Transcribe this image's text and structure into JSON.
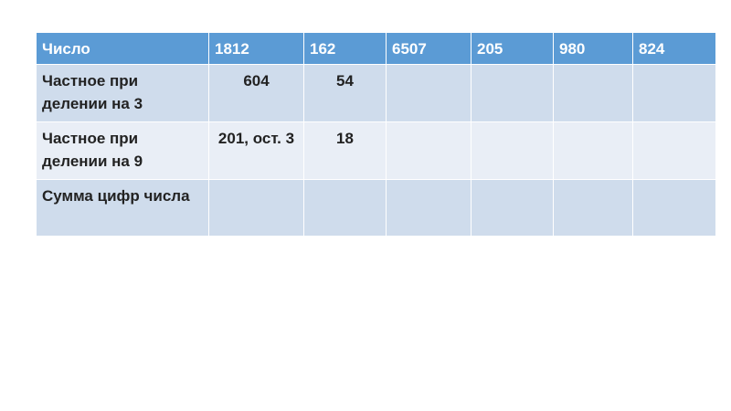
{
  "table": {
    "header": [
      "Число",
      "1812",
      "162",
      "6507",
      "205",
      "980",
      "824"
    ],
    "rows": [
      {
        "label": "Частное при делении на 3",
        "cells": [
          "604",
          "54",
          "",
          "",
          "",
          ""
        ]
      },
      {
        "label": "Частное при делении на 9",
        "cells": [
          "201, ост. 3",
          "18",
          "",
          "",
          "",
          ""
        ]
      },
      {
        "label": "Сумма цифр числа",
        "cells": [
          "",
          "",
          "",
          "",
          "",
          ""
        ]
      }
    ]
  },
  "colors": {
    "header": "#5b9bd5",
    "row_odd": "#cfdcec",
    "row_even": "#e9eef6"
  }
}
